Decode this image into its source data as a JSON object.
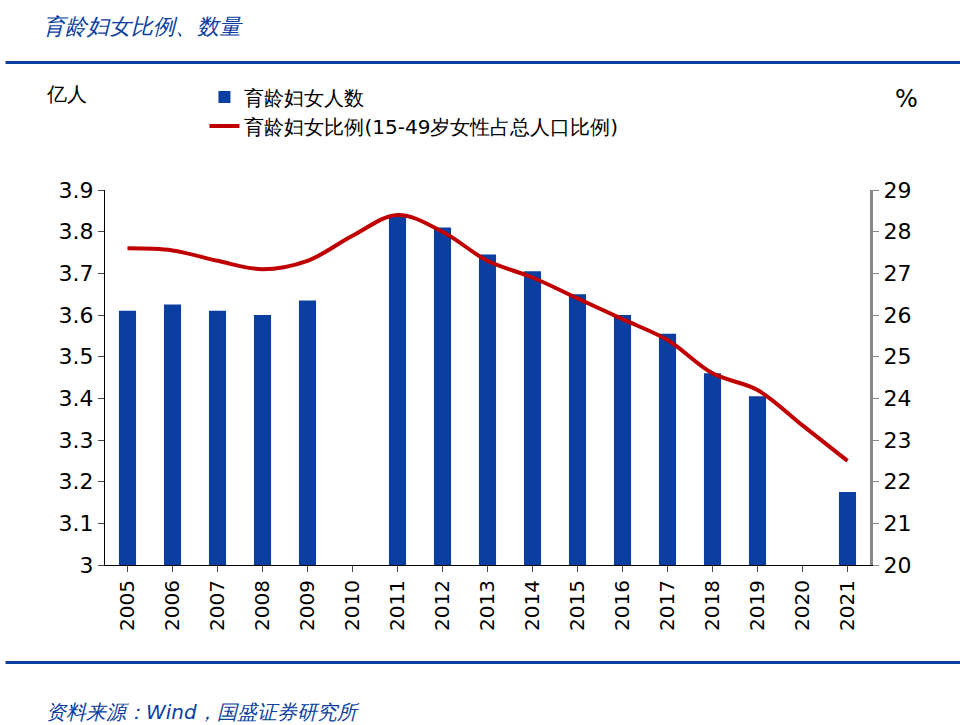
{
  "chart_data": {
    "type": "bar",
    "title": "育龄妇女比例、数量",
    "source": "资料来源：Wind，国盛证券研究所",
    "ylabel": "亿人",
    "y2label": "%",
    "categories": [
      "2005",
      "2006",
      "2007",
      "2008",
      "2009",
      "2010",
      "2011",
      "2012",
      "2013",
      "2014",
      "2015",
      "2016",
      "2017",
      "2018",
      "2019",
      "2020",
      "2021"
    ],
    "series": [
      {
        "name": "育龄妇女人数",
        "type": "bar",
        "color": "#0a3ea0",
        "values": [
          3.61,
          3.625,
          3.61,
          3.6,
          3.635,
          null,
          3.835,
          3.81,
          3.745,
          3.705,
          3.65,
          3.6,
          3.555,
          3.46,
          3.405,
          null,
          3.175
        ]
      },
      {
        "name": "育龄妇女比例(15-49岁女性占总人口比例)",
        "type": "line",
        "axis": "y2",
        "color": "#c00000",
        "line_style": "solid",
        "values": [
          27.6,
          27.55,
          27.3,
          27.1,
          27.3,
          27.9,
          28.4,
          28.0,
          27.3,
          26.9,
          26.4,
          25.9,
          25.4,
          24.6,
          24.2,
          23.35,
          22.5
        ]
      }
    ],
    "ylim": [
      3,
      3.9
    ],
    "yticks": [
      3,
      3.1,
      3.2,
      3.3,
      3.4,
      3.5,
      3.6,
      3.7,
      3.8,
      3.9
    ],
    "y2lim": [
      20,
      29
    ],
    "y2ticks": [
      20,
      21,
      22,
      23,
      24,
      25,
      26,
      27,
      28,
      29
    ],
    "grid": false,
    "legend": "top left"
  }
}
